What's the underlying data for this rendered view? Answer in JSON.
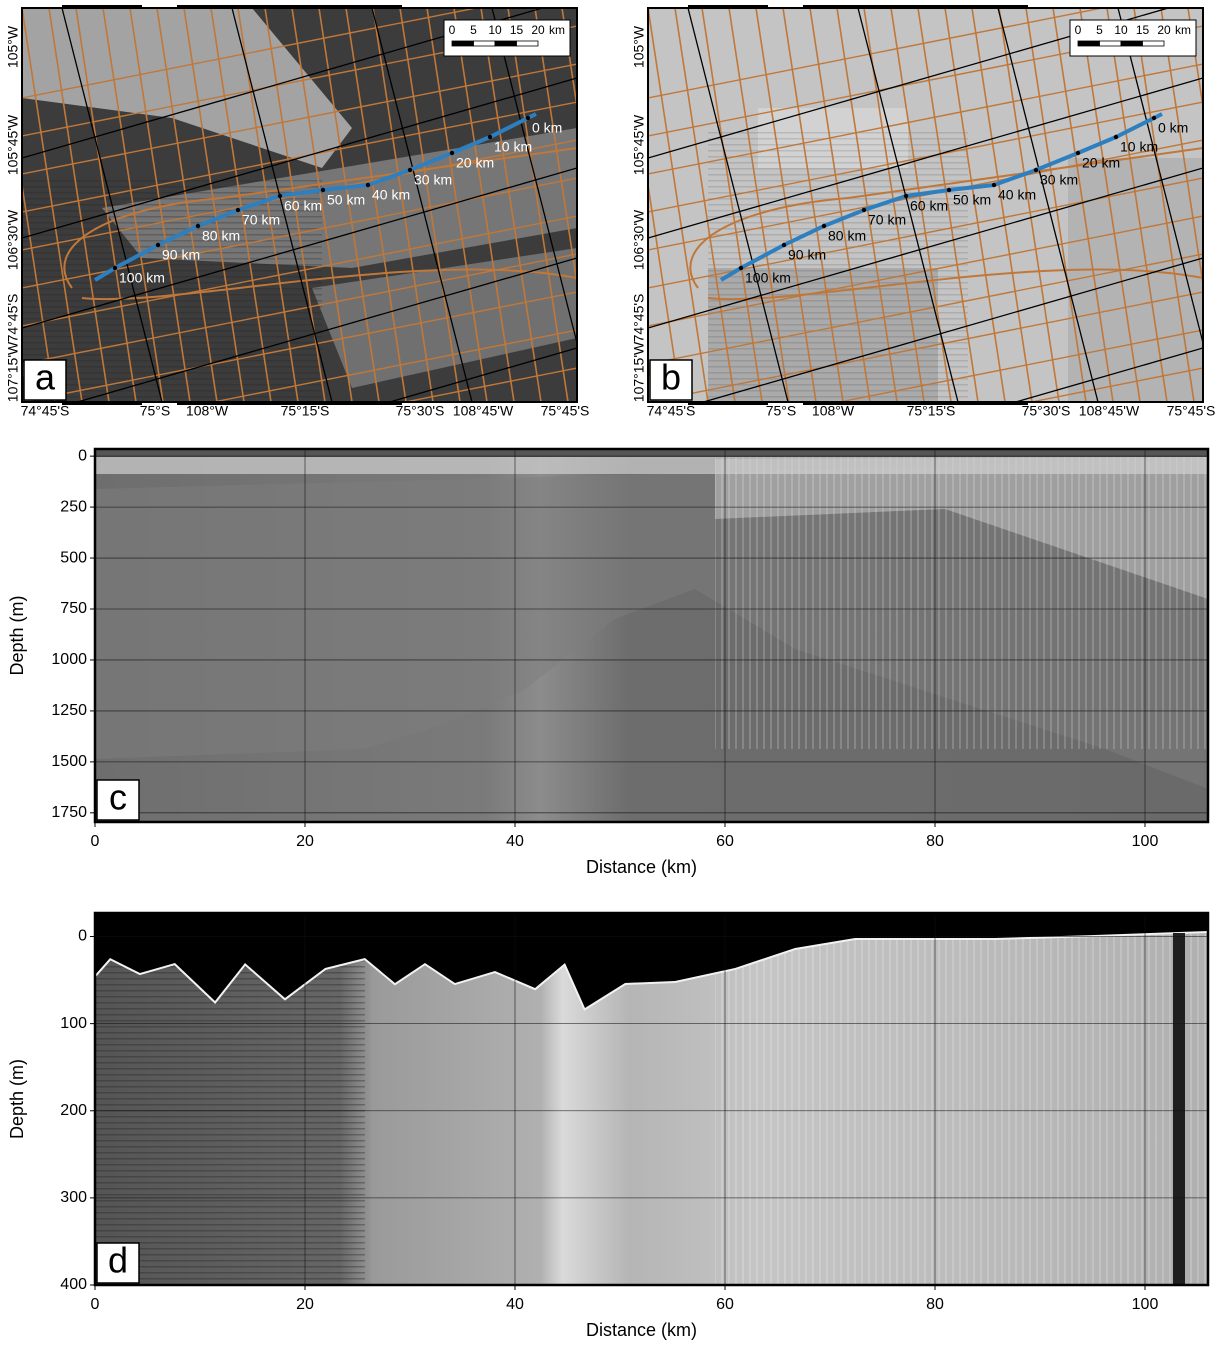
{
  "chart_data": [
    {
      "type": "map",
      "panel": "a",
      "left_labels": [
        "105°W",
        "105°45'W",
        "106°30'W",
        "74°45'S",
        "107°15'W"
      ],
      "bottom_labels": [
        "74°45'S",
        "75°S",
        "108°W",
        "75°15'S",
        "75°30'S",
        "108°45'W",
        "75°45'S"
      ],
      "scale_bar": {
        "ticks": [
          0,
          5,
          10,
          15,
          20
        ],
        "unit": "km"
      },
      "track_labels": [
        "0 km",
        "10 km",
        "20 km",
        "30 km",
        "40 km",
        "50 km",
        "60 km",
        "70 km",
        "80 km",
        "90 km",
        "100 km"
      ]
    },
    {
      "type": "map",
      "panel": "b",
      "left_labels": [
        "105°W",
        "105°45'W",
        "106°30'W",
        "74°45'S",
        "107°15'W"
      ],
      "bottom_labels": [
        "74°45'S",
        "75°S",
        "108°W",
        "75°15'S",
        "75°30'S",
        "108°45'W",
        "75°45'S"
      ],
      "scale_bar": {
        "ticks": [
          0,
          5,
          10,
          15,
          20
        ],
        "unit": "km"
      },
      "track_labels": [
        "0 km",
        "10 km",
        "20 km",
        "30 km",
        "40 km",
        "50 km",
        "60 km",
        "70 km",
        "80 km",
        "90 km",
        "100 km"
      ]
    },
    {
      "type": "radargram",
      "panel": "c",
      "xlabel": "Distance (km)",
      "ylabel": "Depth (m)",
      "xlim": [
        0,
        106
      ],
      "ylim": [
        -35,
        1795
      ],
      "xticks": [
        0,
        20,
        40,
        60,
        80,
        100
      ],
      "yticks": [
        0,
        250,
        500,
        750,
        1000,
        1250,
        1500,
        1750
      ],
      "inverted_y": true,
      "grid": true
    },
    {
      "type": "radargram",
      "panel": "d",
      "xlabel": "Distance (km)",
      "ylabel": "Depth (m)",
      "xlim": [
        0,
        106
      ],
      "ylim": [
        -27,
        400
      ],
      "xticks": [
        0,
        20,
        40,
        60,
        80,
        100
      ],
      "yticks": [
        0,
        100,
        200,
        300,
        400
      ],
      "inverted_y": true,
      "grid": true
    }
  ]
}
